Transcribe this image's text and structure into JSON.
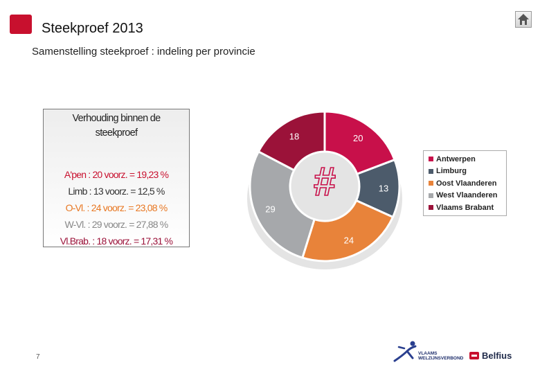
{
  "header": {
    "title": "Steekproef  2013",
    "subtitle": "Samenstelling steekproef : indeling per provincie"
  },
  "ratio_box": {
    "title_line1": "Verhouding binnen de",
    "title_line2": "steekproef",
    "lines": [
      {
        "text": "A'pen :  20 voorz. = 19,23 %",
        "color": "#c8102e"
      },
      {
        "text": "Limb : 13 voorz. = 12,5 %",
        "color": "#333333"
      },
      {
        "text": "O-Vl. : 24 voorz. = 23,08 %",
        "color": "#e87722"
      },
      {
        "text": "W-Vl. : 29 voorz. = 27,88 %",
        "color": "#888888"
      },
      {
        "text": "Vl.Brab. : 18 voorz. = 17,31 %",
        "color": "#9b1239"
      }
    ]
  },
  "chart_data": {
    "type": "pie",
    "style": "donut",
    "center_symbol": "#",
    "categories": [
      "Antwerpen",
      "Limburg",
      "Oost Vlaanderen",
      "West Vlaanderen",
      "Vlaams Brabant"
    ],
    "values": [
      20,
      13,
      24,
      29,
      18
    ],
    "colors": [
      "#c8104a",
      "#4c5b6b",
      "#e8833a",
      "#a6a8ab",
      "#9b1239"
    ],
    "legend": {
      "placement": "right",
      "entries": [
        "Antwerpen",
        "Limburg",
        "Oost Vlaanderen",
        "West Vlaanderen",
        "Vlaams Brabant"
      ]
    }
  },
  "footer": {
    "page_number": "7",
    "vw_logo_line1": "VLAAMS",
    "vw_logo_line2": "WELZIJNSVERBOND",
    "belfius": "Belfius"
  },
  "icons": {
    "home": "home-icon"
  }
}
